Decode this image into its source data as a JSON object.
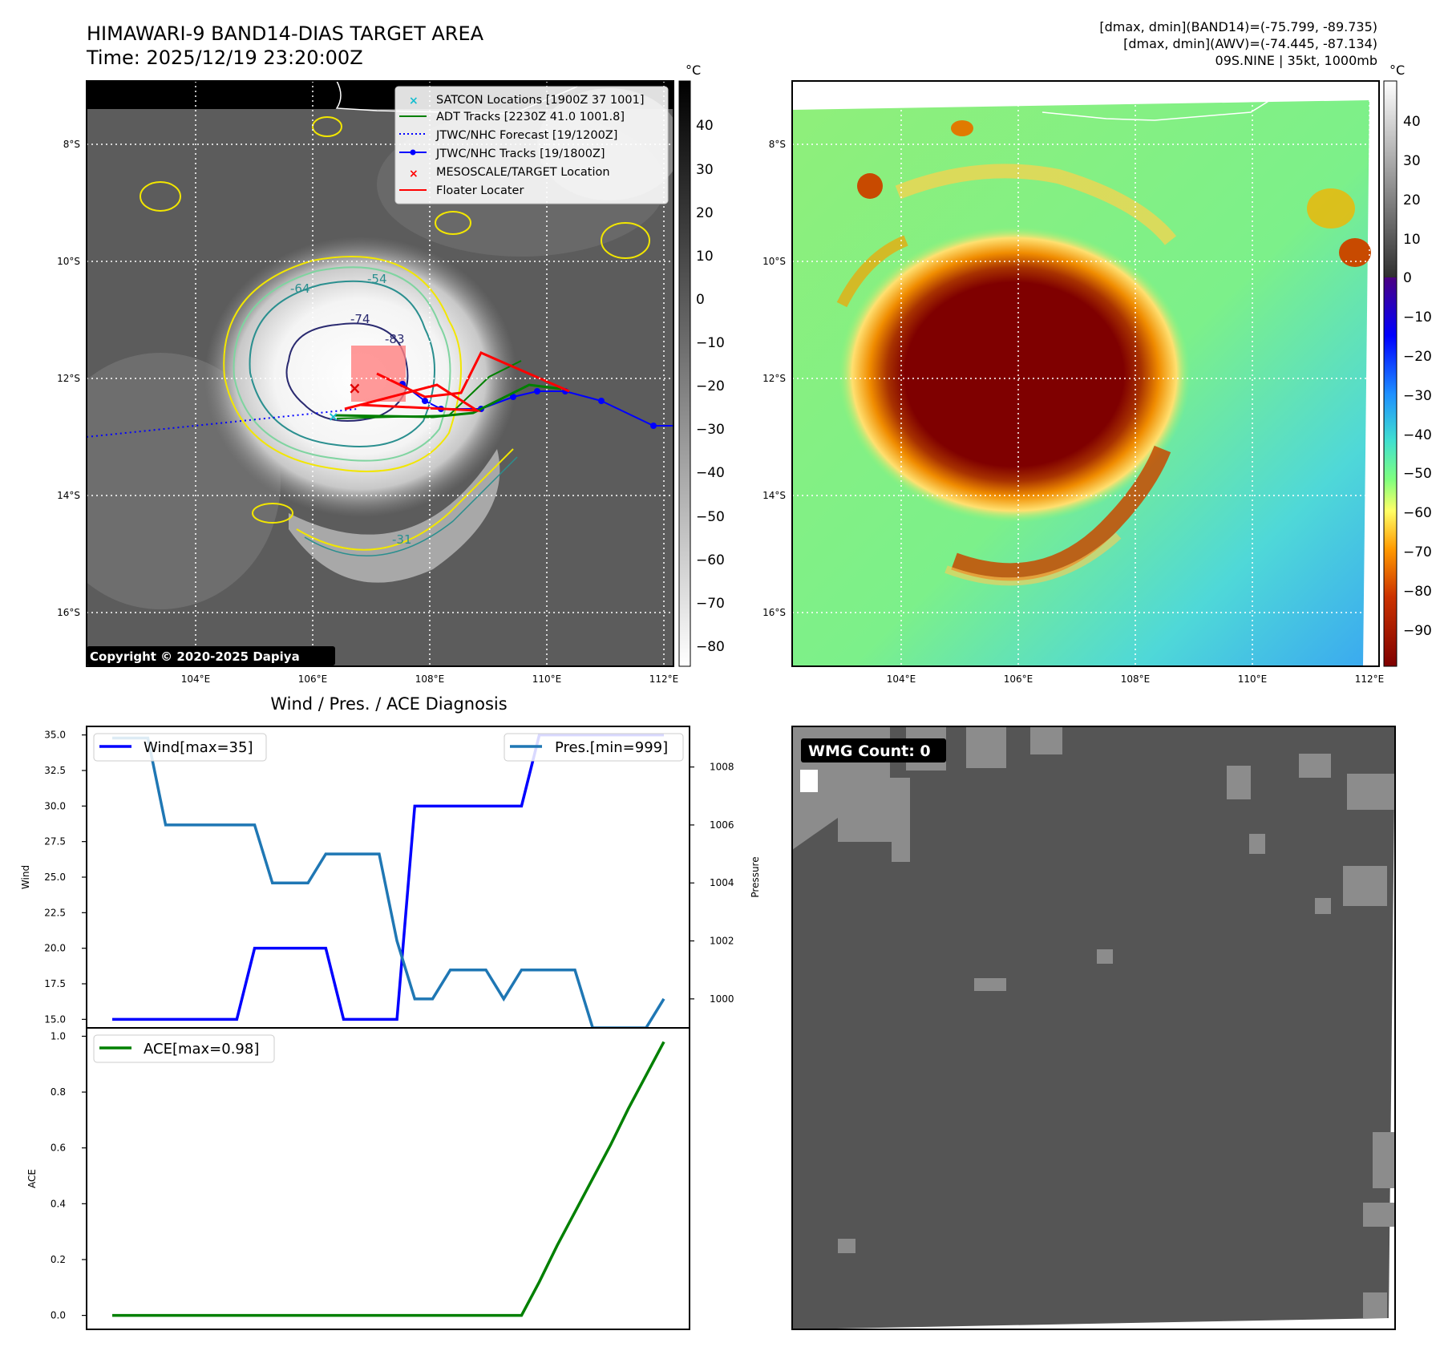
{
  "header": {
    "title_line1": "HIMAWARI-9 BAND14-DIAS TARGET AREA",
    "title_line2": "Time: 2025/12/19 23:20:00Z",
    "info_line1": "[dmax, dmin](BAND14)=(-75.799, -89.735)",
    "info_line2": "[dmax, dmin](AWV)=(-74.445, -87.134)",
    "info_line3": "09S.NINE | 35kt, 1000mb"
  },
  "copyright": "Copyright © 2020-2025 Dapiya",
  "colorbar_unit": "°C",
  "colorbar_gray_ticks": [
    "40",
    "30",
    "20",
    "10",
    "0",
    "−10",
    "−20",
    "−30",
    "−40",
    "−50",
    "−60",
    "−70",
    "−80"
  ],
  "colorbar_color_ticks": [
    "40",
    "30",
    "20",
    "10",
    "0",
    "−10",
    "−20",
    "−30",
    "−40",
    "−50",
    "−60",
    "−70",
    "−80",
    "−90"
  ],
  "map_axes": {
    "lat_labels": [
      "8°S",
      "10°S",
      "12°S",
      "14°S",
      "16°S"
    ],
    "lon_labels": [
      "104°E",
      "106°E",
      "108°E",
      "110°E",
      "112°E"
    ]
  },
  "contour_labels": [
    "-64",
    "-54",
    "-74",
    "-83",
    "-31"
  ],
  "map_legend": [
    {
      "marker": "x",
      "color": "#17becf",
      "label": "SATCON Locations [1900Z 37 1001]"
    },
    {
      "marker": "line",
      "color": "#008000",
      "label": "ADT Tracks [2230Z 41.0 1001.8]"
    },
    {
      "marker": "dotted",
      "color": "#0000ff",
      "label": "JTWC/NHC Forecast [19/1200Z]"
    },
    {
      "marker": "line-dot",
      "color": "#0000ff",
      "label": "JTWC/NHC Tracks [19/1800Z]"
    },
    {
      "marker": "x",
      "color": "#ff0000",
      "label": "MESOSCALE/TARGET Location"
    },
    {
      "marker": "line",
      "color": "#ff0000",
      "label": "Floater Locater"
    }
  ],
  "wmg": {
    "label": "WMG Count: 0"
  },
  "colors": {
    "wind": "#0000ff",
    "pressure": "#1f77b4",
    "ace": "#008000"
  },
  "chart_data": [
    {
      "type": "line",
      "title": "Wind / Pres. / ACE Diagnosis",
      "x_index": [
        0,
        1,
        2,
        3,
        4,
        5,
        6,
        7,
        8,
        9,
        10,
        11,
        12,
        13,
        14,
        15,
        16,
        17,
        18,
        19,
        20,
        21,
        22,
        23,
        24,
        25,
        26,
        27,
        28,
        29,
        30,
        31
      ],
      "series": [
        {
          "name": "Wind",
          "legend": "Wind[max=35]",
          "axis": "left",
          "values": [
            15,
            15,
            15,
            15,
            15,
            15,
            15,
            15,
            20,
            20,
            20,
            20,
            20,
            15,
            15,
            15,
            15,
            30,
            30,
            30,
            30,
            30,
            30,
            30,
            35,
            35,
            35,
            35,
            35,
            35,
            35,
            35
          ]
        },
        {
          "name": "Pressure",
          "legend": "Pres.[min=999]",
          "axis": "right",
          "values": [
            1009,
            1009,
            1009,
            1006,
            1006,
            1006,
            1006,
            1006,
            1006,
            1004,
            1004,
            1004,
            1005,
            1005,
            1005,
            1005,
            1002,
            1000,
            1000,
            1001,
            1001,
            1001,
            1000,
            1001,
            1001,
            1001,
            1001,
            999,
            999,
            999,
            999,
            1000
          ]
        }
      ],
      "ylabel": "Wind",
      "y2label": "Pressure",
      "ylim": [
        14.4,
        35.6
      ],
      "y2lim": [
        999,
        1009.4
      ],
      "yticks": [
        "15.0",
        "17.5",
        "20.0",
        "22.5",
        "25.0",
        "27.5",
        "30.0",
        "32.5",
        "35.0"
      ],
      "y2ticks": [
        "1000",
        "1002",
        "1004",
        "1006",
        "1008"
      ]
    },
    {
      "type": "line",
      "title": "",
      "x_index": [
        0,
        1,
        2,
        3,
        4,
        5,
        6,
        7,
        8,
        9,
        10,
        11,
        12,
        13,
        14,
        15,
        16,
        17,
        18,
        19,
        20,
        21,
        22,
        23,
        24,
        25,
        26,
        27,
        28,
        29,
        30,
        31
      ],
      "series": [
        {
          "name": "ACE",
          "legend": "ACE[max=0.98]",
          "values": [
            0,
            0,
            0,
            0,
            0,
            0,
            0,
            0,
            0,
            0,
            0,
            0,
            0,
            0,
            0,
            0,
            0,
            0,
            0,
            0,
            0,
            0,
            0,
            0,
            0.12,
            0.25,
            0.37,
            0.49,
            0.61,
            0.74,
            0.86,
            0.98
          ]
        }
      ],
      "ylabel": "ACE",
      "ylim": [
        -0.05,
        1.03
      ],
      "yticks": [
        "0.0",
        "0.2",
        "0.4",
        "0.6",
        "0.8",
        "1.0"
      ]
    }
  ]
}
